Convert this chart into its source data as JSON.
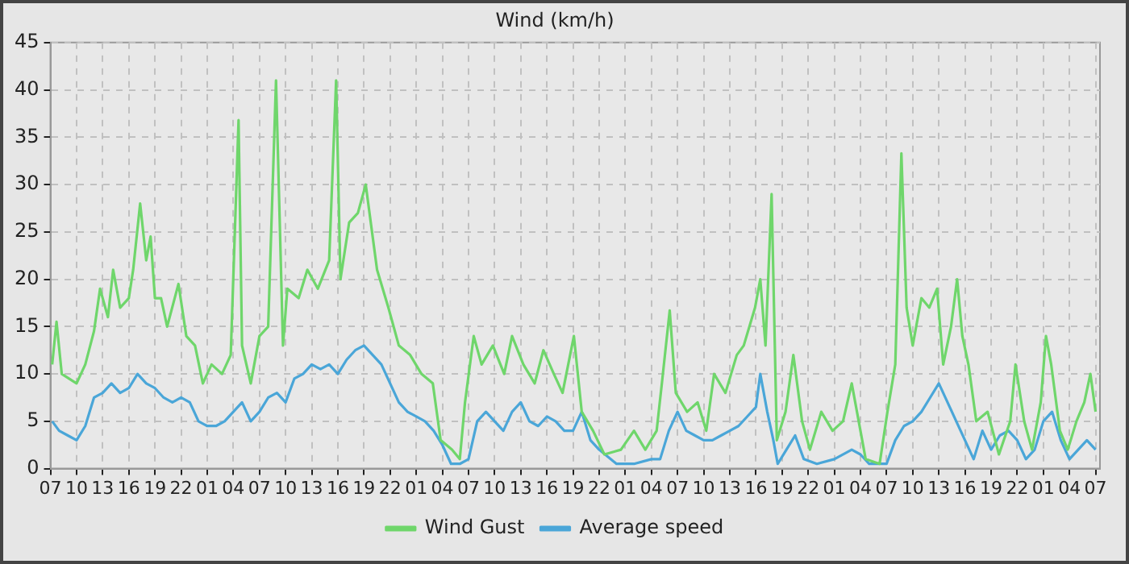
{
  "chart_data": {
    "type": "line",
    "title": "Wind (km/h)",
    "legend": "bottom",
    "grid": true,
    "line_style": "solid",
    "marker": "none",
    "xlim": [
      "--01-01T07:00",
      "--01-06T07:30"
    ],
    "ylim": [
      0,
      45
    ],
    "yticks": [
      0,
      5,
      10,
      15,
      20,
      25,
      30,
      35,
      40,
      45
    ],
    "xticks": [
      {
        "value": "--01-01T07:00",
        "label": "07"
      },
      {
        "value": "--01-01T10:00",
        "label": "10"
      },
      {
        "value": "--01-01T13:00",
        "label": "13"
      },
      {
        "value": "--01-01T16:00",
        "label": "16"
      },
      {
        "value": "--01-01T19:00",
        "label": "19"
      },
      {
        "value": "--01-01T22:00",
        "label": "22"
      },
      {
        "value": "--01-02T01:00",
        "label": "01"
      },
      {
        "value": "--01-02T04:00",
        "label": "04"
      },
      {
        "value": "--01-02T07:00",
        "label": "07"
      },
      {
        "value": "--01-02T10:00",
        "label": "10"
      },
      {
        "value": "--01-02T13:00",
        "label": "13"
      },
      {
        "value": "--01-02T16:00",
        "label": "16"
      },
      {
        "value": "--01-02T19:00",
        "label": "19"
      },
      {
        "value": "--01-02T22:00",
        "label": "22"
      },
      {
        "value": "--01-03T01:00",
        "label": "01"
      },
      {
        "value": "--01-03T04:00",
        "label": "04"
      },
      {
        "value": "--01-03T07:00",
        "label": "07"
      },
      {
        "value": "--01-03T10:00",
        "label": "10"
      },
      {
        "value": "--01-03T13:00",
        "label": "13"
      },
      {
        "value": "--01-03T16:00",
        "label": "16"
      },
      {
        "value": "--01-03T19:00",
        "label": "19"
      },
      {
        "value": "--01-03T22:00",
        "label": "22"
      },
      {
        "value": "--01-04T01:00",
        "label": "01"
      },
      {
        "value": "--01-04T04:00",
        "label": "04"
      },
      {
        "value": "--01-04T07:00",
        "label": "07"
      },
      {
        "value": "--01-04T10:00",
        "label": "10"
      },
      {
        "value": "--01-04T13:00",
        "label": "13"
      },
      {
        "value": "--01-04T16:00",
        "label": "16"
      },
      {
        "value": "--01-04T19:00",
        "label": "19"
      },
      {
        "value": "--01-04T22:00",
        "label": "22"
      },
      {
        "value": "--01-05T01:00",
        "label": "01"
      },
      {
        "value": "--01-05T04:00",
        "label": "04"
      },
      {
        "value": "--01-05T07:00",
        "label": "07"
      },
      {
        "value": "--01-05T10:00",
        "label": "10"
      },
      {
        "value": "--01-05T13:00",
        "label": "13"
      },
      {
        "value": "--01-05T16:00",
        "label": "16"
      },
      {
        "value": "--01-05T19:00",
        "label": "19"
      },
      {
        "value": "--01-05T22:00",
        "label": "22"
      },
      {
        "value": "--01-06T01:00",
        "label": "01"
      },
      {
        "value": "--01-06T04:00",
        "label": "04"
      },
      {
        "value": "--01-06T07:00",
        "label": "07"
      }
    ],
    "series": [
      {
        "name": "Wind Gust",
        "color": "#6fd66b",
        "x": [
          "--01-01T07:12",
          "--01-01T07:42",
          "--01-01T08:18",
          "--01-01T10:00",
          "--01-01T11:00",
          "--01-01T12:00",
          "--01-01T12:42",
          "--01-01T13:36",
          "--01-01T14:12",
          "--01-01T15:00",
          "--01-01T16:00",
          "--01-01T16:30",
          "--01-01T17:18",
          "--01-01T18:00",
          "--01-01T18:30",
          "--01-01T19:00",
          "--01-01T19:42",
          "--01-01T20:24",
          "--01-01T21:42",
          "--01-01T22:36",
          "--01-01T23:36",
          "--01-02T00:30",
          "--01-02T01:30",
          "--01-02T02:42",
          "--01-02T03:42",
          "--01-02T04:36",
          "--01-02T05:00",
          "--01-02T06:00",
          "--01-02T07:00",
          "--01-02T08:00",
          "--01-02T08:54",
          "--01-02T09:42",
          "--01-02T10:12",
          "--01-02T11:30",
          "--01-02T12:30",
          "--01-02T13:42",
          "--01-02T15:00",
          "--01-02T15:48",
          "--01-02T16:18",
          "--01-02T17:18",
          "--01-02T18:18",
          "--01-02T19:12",
          "--01-02T20:30",
          "--01-02T21:48",
          "--01-02T23:00",
          "--01-03T00:18",
          "--01-03T01:36",
          "--01-03T02:54",
          "--01-03T03:48",
          "--01-03T05:06",
          "--01-03T06:00",
          "--01-03T06:36",
          "--01-03T07:36",
          "--01-03T08:30",
          "--01-03T09:48",
          "--01-03T11:06",
          "--01-03T12:00",
          "--01-03T13:18",
          "--01-03T14:36",
          "--01-03T15:36",
          "--01-03T16:48",
          "--01-03T17:48",
          "--01-03T19:06",
          "--01-03T20:00",
          "--01-03T21:18",
          "--01-03T22:36",
          "--01-04T00:30",
          "--01-04T02:00",
          "--01-04T03:18",
          "--01-04T04:36",
          "--01-04T05:12",
          "--01-04T06:06",
          "--01-04T06:48",
          "--01-04T08:06",
          "--01-04T09:18",
          "--01-04T10:18",
          "--01-04T11:12",
          "--01-04T12:30",
          "--01-04T13:48",
          "--01-04T14:36",
          "--01-04T15:54",
          "--01-04T16:30",
          "--01-04T17:06",
          "--01-04T17:48",
          "--01-04T18:24",
          "--01-04T19:24",
          "--01-04T20:18",
          "--01-04T21:18",
          "--01-04T22:12",
          "--01-04T23:30",
          "--01-05T00:48",
          "--01-05T02:00",
          "--01-05T03:00",
          "--01-05T03:36",
          "--01-05T04:36",
          "--01-05T06:12",
          "--01-05T07:06",
          "--01-05T08:00",
          "--01-05T08:42",
          "--01-05T09:18",
          "--01-05T10:00",
          "--01-05T11:00",
          "--01-05T11:54",
          "--01-05T12:48",
          "--01-05T13:30",
          "--01-05T14:24",
          "--01-05T15:06",
          "--01-05T15:42",
          "--01-05T16:24",
          "--01-05T17:18",
          "--01-05T18:36",
          "--01-05T19:54",
          "--01-05T21:12",
          "--01-05T21:48",
          "--01-05T22:48",
          "--01-05T23:42",
          "--01-06T00:42",
          "--01-06T01:18",
          "--01-06T01:54",
          "--01-06T02:54",
          "--01-06T03:48",
          "--01-06T04:48",
          "--01-06T05:42",
          "--01-06T06:24",
          "--01-06T07:00"
        ],
        "values": [
          11,
          15.5,
          10,
          9,
          11,
          14.5,
          19,
          16,
          21,
          17,
          18,
          21,
          28,
          22,
          24.5,
          18,
          18,
          15,
          19.5,
          14,
          13,
          9,
          11,
          10,
          12,
          36.8,
          13,
          9,
          14,
          15,
          41,
          13,
          19,
          18,
          21,
          19,
          22,
          41,
          20,
          26,
          27,
          30,
          21,
          17,
          13,
          12,
          10,
          9,
          3,
          2,
          1,
          7,
          14,
          11,
          13,
          10,
          14,
          11,
          9,
          12.5,
          10,
          8,
          14,
          6,
          4,
          1.5,
          2,
          4,
          2,
          4,
          9,
          16.7,
          8,
          6,
          7,
          4,
          10,
          8,
          12,
          13,
          17,
          20,
          13,
          29,
          3,
          6,
          12,
          5,
          2,
          6,
          4,
          5,
          9,
          6,
          1,
          0.5,
          6,
          11,
          33.3,
          17,
          13,
          18,
          17,
          19,
          11,
          15,
          20,
          14,
          11,
          5,
          6,
          1.5,
          5,
          11,
          5,
          2,
          7,
          14,
          11,
          4,
          2,
          5,
          7,
          10,
          6
        ]
      },
      {
        "name": "Average speed",
        "color": "#4aa6d8",
        "x": [
          "--01-01T07:12",
          "--01-01T08:00",
          "--01-01T09:00",
          "--01-01T10:00",
          "--01-01T11:00",
          "--01-01T12:00",
          "--01-01T13:00",
          "--01-01T14:00",
          "--01-01T15:00",
          "--01-01T16:00",
          "--01-01T17:00",
          "--01-01T18:00",
          "--01-01T19:00",
          "--01-01T20:00",
          "--01-01T21:00",
          "--01-01T22:00",
          "--01-01T23:00",
          "--01-02T00:00",
          "--01-02T01:00",
          "--01-02T02:00",
          "--01-02T03:00",
          "--01-02T04:00",
          "--01-02T05:00",
          "--01-02T06:00",
          "--01-02T07:00",
          "--01-02T08:00",
          "--01-02T09:00",
          "--01-02T10:00",
          "--01-02T11:00",
          "--01-02T12:00",
          "--01-02T13:00",
          "--01-02T14:00",
          "--01-02T15:00",
          "--01-02T16:00",
          "--01-02T17:00",
          "--01-02T18:00",
          "--01-02T19:00",
          "--01-02T20:00",
          "--01-02T21:00",
          "--01-02T22:00",
          "--01-02T23:00",
          "--01-03T00:00",
          "--01-03T01:00",
          "--01-03T02:00",
          "--01-03T03:00",
          "--01-03T04:00",
          "--01-03T05:00",
          "--01-03T06:00",
          "--01-03T07:00",
          "--01-03T08:00",
          "--01-03T09:00",
          "--01-03T10:00",
          "--01-03T11:00",
          "--01-03T12:00",
          "--01-03T13:00",
          "--01-03T14:00",
          "--01-03T15:00",
          "--01-03T16:00",
          "--01-03T17:00",
          "--01-03T18:00",
          "--01-03T19:00",
          "--01-03T20:00",
          "--01-03T21:00",
          "--01-03T22:00",
          "--01-04T00:00",
          "--01-04T02:00",
          "--01-04T04:00",
          "--01-04T05:00",
          "--01-04T06:00",
          "--01-04T07:00",
          "--01-04T08:00",
          "--01-04T09:00",
          "--01-04T10:00",
          "--01-04T11:00",
          "--01-04T12:00",
          "--01-04T13:00",
          "--01-04T14:00",
          "--01-04T15:00",
          "--01-04T16:00",
          "--01-04T16:30",
          "--01-04T17:18",
          "--01-04T18:00",
          "--01-04T18:30",
          "--01-04T19:30",
          "--01-04T20:30",
          "--01-04T21:30",
          "--01-04T23:00",
          "--01-05T01:00",
          "--01-05T03:00",
          "--01-05T04:00",
          "--01-05T05:00",
          "--01-05T07:00",
          "--01-05T08:00",
          "--01-05T09:00",
          "--01-05T10:00",
          "--01-05T11:00",
          "--01-05T12:00",
          "--01-05T13:00",
          "--01-05T14:00",
          "--01-05T15:00",
          "--01-05T16:00",
          "--01-05T17:00",
          "--01-05T18:00",
          "--01-05T19:00",
          "--01-05T20:00",
          "--01-05T21:00",
          "--01-05T22:00",
          "--01-05T23:00",
          "--01-06T00:00",
          "--01-06T01:00",
          "--01-06T02:00",
          "--01-06T03:00",
          "--01-06T04:00",
          "--01-06T05:00",
          "--01-06T06:00",
          "--01-06T07:00"
        ],
        "values": [
          5,
          4,
          3.5,
          3,
          4.5,
          7.5,
          8,
          9,
          8,
          8.5,
          10,
          9,
          8.5,
          7.5,
          7,
          7.5,
          7,
          5,
          4.5,
          4.5,
          5,
          6,
          7,
          5,
          6,
          7.5,
          8,
          7,
          9.5,
          10,
          11,
          10.5,
          11,
          10,
          11.5,
          12.5,
          13,
          12,
          11,
          9,
          7,
          6,
          5.5,
          5,
          4,
          2.5,
          0.5,
          0.5,
          1,
          5,
          6,
          5,
          4,
          6,
          7,
          5,
          4.5,
          5.5,
          5,
          4,
          4,
          6,
          3,
          2,
          0.5,
          0.5,
          1,
          1,
          4,
          6,
          4,
          3.5,
          3,
          3,
          3.5,
          4,
          4.5,
          5.5,
          6.5,
          10,
          6,
          3,
          0.5,
          2,
          3.5,
          1,
          0.5,
          1,
          2,
          1.5,
          0.5,
          0.5,
          3,
          4.5,
          5,
          6,
          7.5,
          9,
          7,
          5,
          3,
          1,
          4,
          2,
          3.5,
          4,
          3,
          1,
          2,
          5,
          6,
          3,
          1,
          2,
          3,
          2
        ]
      }
    ]
  }
}
